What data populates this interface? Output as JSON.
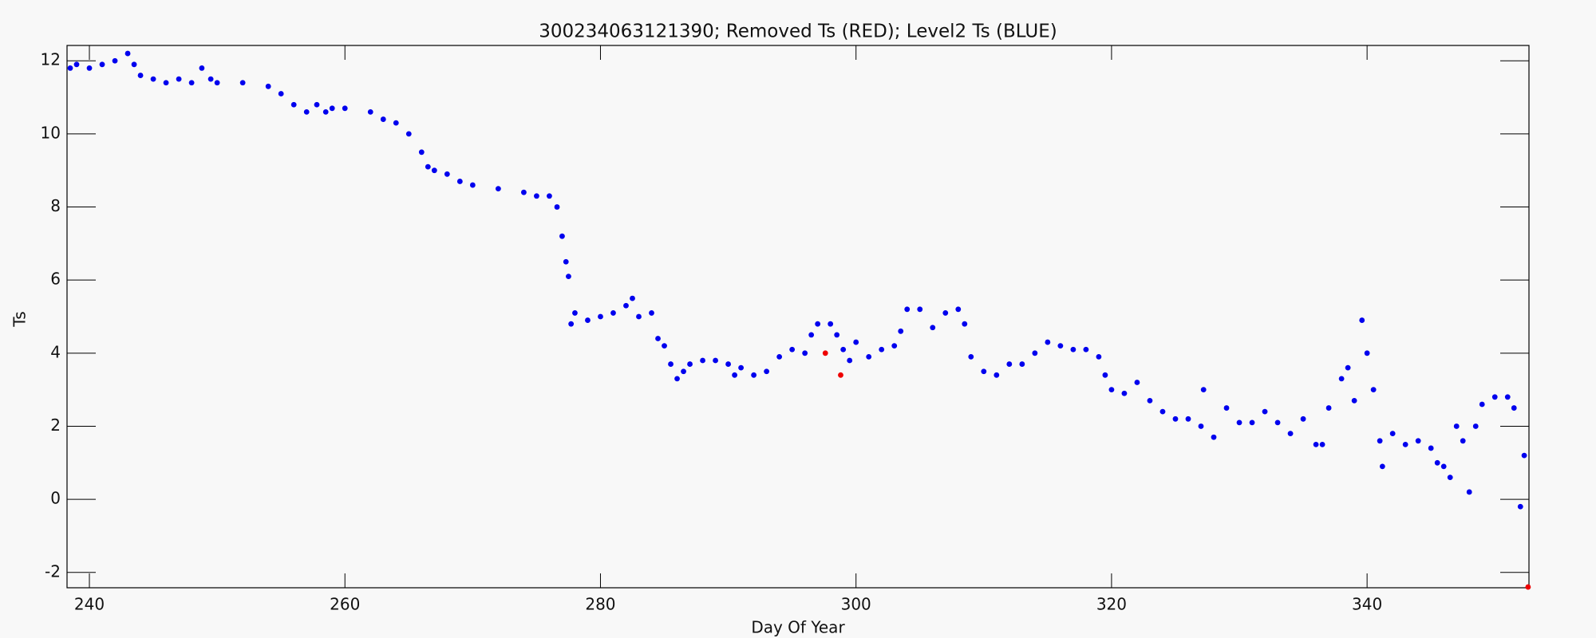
{
  "chart_data": {
    "type": "scatter",
    "title": "300234063121390; Removed Ts (RED); Level2 Ts (BLUE)",
    "x_label": "Day Of Year",
    "y_label": "Ts",
    "xlim": [
      238.25,
      352.67
    ],
    "ylim": [
      -2.42,
      12.42
    ],
    "xticks": [
      240,
      260,
      280,
      300,
      320,
      340
    ],
    "yticks": [
      -2,
      0,
      2,
      4,
      6,
      8,
      10,
      12
    ],
    "series": [
      {
        "color": "#0000ee",
        "x": [
          238.5,
          239,
          240,
          241,
          242,
          243,
          243.5,
          244,
          245,
          246,
          247,
          248,
          248.8,
          249.5,
          250,
          252,
          254,
          255,
          256,
          257,
          257.8,
          258.5,
          259,
          260,
          262,
          263,
          264,
          265,
          266,
          266.5,
          267,
          268,
          269,
          270,
          272,
          274,
          275,
          276,
          276.6,
          277,
          277.3,
          277.5,
          277.7,
          278,
          279,
          280,
          281,
          282,
          282.5,
          283,
          284,
          284.5,
          285,
          285.5,
          286,
          286.5,
          287,
          288,
          289,
          290,
          290.5,
          291,
          292,
          293,
          294,
          295,
          296,
          296.5,
          297,
          298,
          298.5,
          299,
          299.5,
          300,
          301,
          302,
          303,
          303.5,
          304,
          305,
          306,
          307,
          308,
          308.5,
          309,
          310,
          311,
          312,
          313,
          314,
          315,
          316,
          317,
          318,
          319,
          319.5,
          320,
          321,
          322,
          323,
          324,
          325,
          326,
          327,
          327.2,
          328,
          329,
          330,
          331,
          332,
          333,
          334,
          335,
          336,
          336.5,
          337,
          338,
          338.5,
          339,
          339.6,
          340,
          340.5,
          341,
          341.2,
          342,
          343,
          344,
          345,
          345.5,
          346,
          346.5,
          347,
          347.5,
          348,
          348.5,
          349,
          350,
          351,
          351.5,
          352,
          352.3
        ],
        "values": [
          11.8,
          11.9,
          11.8,
          11.9,
          12.0,
          12.2,
          11.9,
          11.6,
          11.5,
          11.4,
          11.5,
          11.4,
          11.8,
          11.5,
          11.4,
          11.4,
          11.3,
          11.1,
          10.8,
          10.6,
          10.8,
          10.6,
          10.7,
          10.7,
          10.6,
          10.4,
          10.3,
          10.0,
          9.5,
          9.1,
          9.0,
          8.9,
          8.7,
          8.6,
          8.5,
          8.4,
          8.3,
          8.3,
          8.0,
          7.2,
          6.5,
          6.1,
          4.8,
          5.1,
          4.9,
          5.0,
          5.1,
          5.3,
          5.5,
          5.0,
          5.1,
          4.4,
          4.2,
          3.7,
          3.3,
          3.5,
          3.7,
          3.8,
          3.8,
          3.7,
          3.4,
          3.6,
          3.4,
          3.5,
          3.9,
          4.1,
          4.0,
          4.5,
          4.8,
          4.8,
          4.5,
          4.1,
          3.8,
          4.3,
          3.9,
          4.1,
          4.2,
          4.6,
          5.2,
          5.2,
          4.7,
          5.1,
          5.2,
          4.8,
          3.9,
          3.5,
          3.4,
          3.7,
          3.7,
          4.0,
          4.3,
          4.2,
          4.1,
          4.1,
          3.9,
          3.4,
          3.0,
          2.9,
          3.2,
          2.7,
          2.4,
          2.2,
          2.2,
          2.0,
          3.0,
          1.7,
          2.5,
          2.1,
          2.1,
          2.4,
          2.1,
          1.8,
          2.2,
          1.5,
          1.5,
          2.5,
          3.3,
          3.6,
          2.7,
          4.9,
          4.0,
          3.0,
          1.6,
          0.9,
          1.8,
          1.5,
          1.6,
          1.4,
          1.0,
          0.9,
          0.6,
          2.0,
          1.6,
          0.2,
          2.0,
          2.6,
          2.8,
          2.8,
          2.5,
          -0.2,
          1.2
        ]
      },
      {
        "color": "#ee0000",
        "x": [
          297.6,
          298.8,
          352.6
        ],
        "values": [
          4.0,
          3.4,
          -2.4
        ]
      }
    ]
  }
}
